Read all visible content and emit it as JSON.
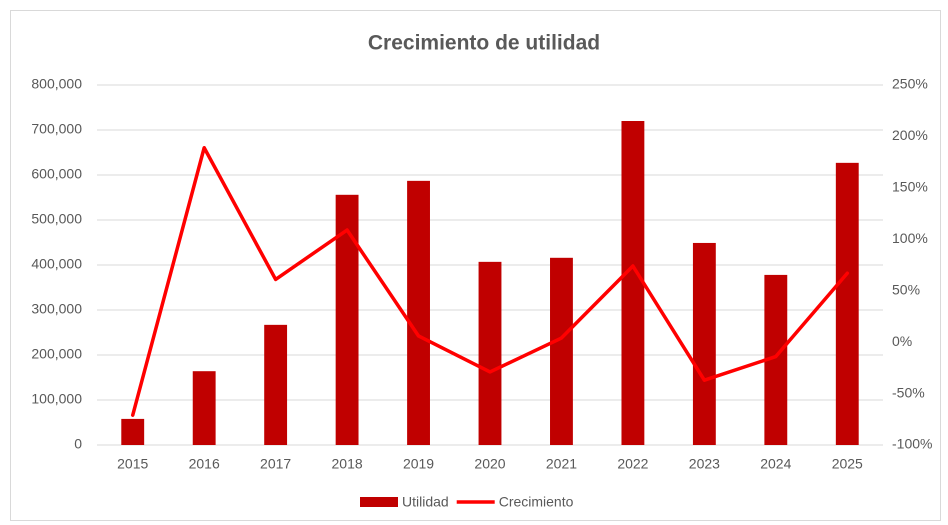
{
  "chart_data": {
    "type": "bar_line",
    "title": "Crecimiento de utilidad",
    "categories": [
      "2015",
      "2016",
      "2017",
      "2018",
      "2019",
      "2020",
      "2021",
      "2022",
      "2023",
      "2024",
      "2025"
    ],
    "series": [
      {
        "name": "Utilidad",
        "type": "bar",
        "color": "#c00000",
        "values": [
          58000,
          164000,
          267000,
          556000,
          587000,
          407000,
          416000,
          720000,
          449000,
          378000,
          627000
        ]
      },
      {
        "name": "Crecimiento",
        "type": "line",
        "axis": "y2",
        "color": "#ff0000",
        "values": [
          -71,
          189,
          61,
          109,
          6,
          -29,
          4,
          74,
          -37,
          -14,
          67
        ]
      }
    ],
    "ylim": [
      0,
      800000
    ],
    "yticks": [
      0,
      {
        "value": 100000,
        "label": "100,000"
      },
      {
        "value": 200000,
        "label": "200,000"
      },
      {
        "value": 300000,
        "label": "300,000"
      },
      {
        "value": 400000,
        "label": "400,000"
      },
      {
        "value": 500000,
        "label": "500,000"
      },
      {
        "value": 600000,
        "label": "600,000"
      },
      {
        "value": 700000,
        "label": "700,000"
      },
      {
        "value": 800000,
        "label": "800,000"
      }
    ],
    "y2lim": [
      -100,
      250
    ],
    "y2ticks": [
      {
        "value": -100,
        "label": "-100%"
      },
      {
        "value": -50,
        "label": "-50%"
      },
      {
        "value": 0,
        "label": "0%"
      },
      {
        "value": 50,
        "label": "50%"
      },
      {
        "value": 100,
        "label": "100%"
      },
      {
        "value": 150,
        "label": "150%"
      },
      {
        "value": 200,
        "label": "200%"
      },
      {
        "value": 250,
        "label": "250%"
      }
    ],
    "grid": true,
    "legend": "bottom"
  }
}
